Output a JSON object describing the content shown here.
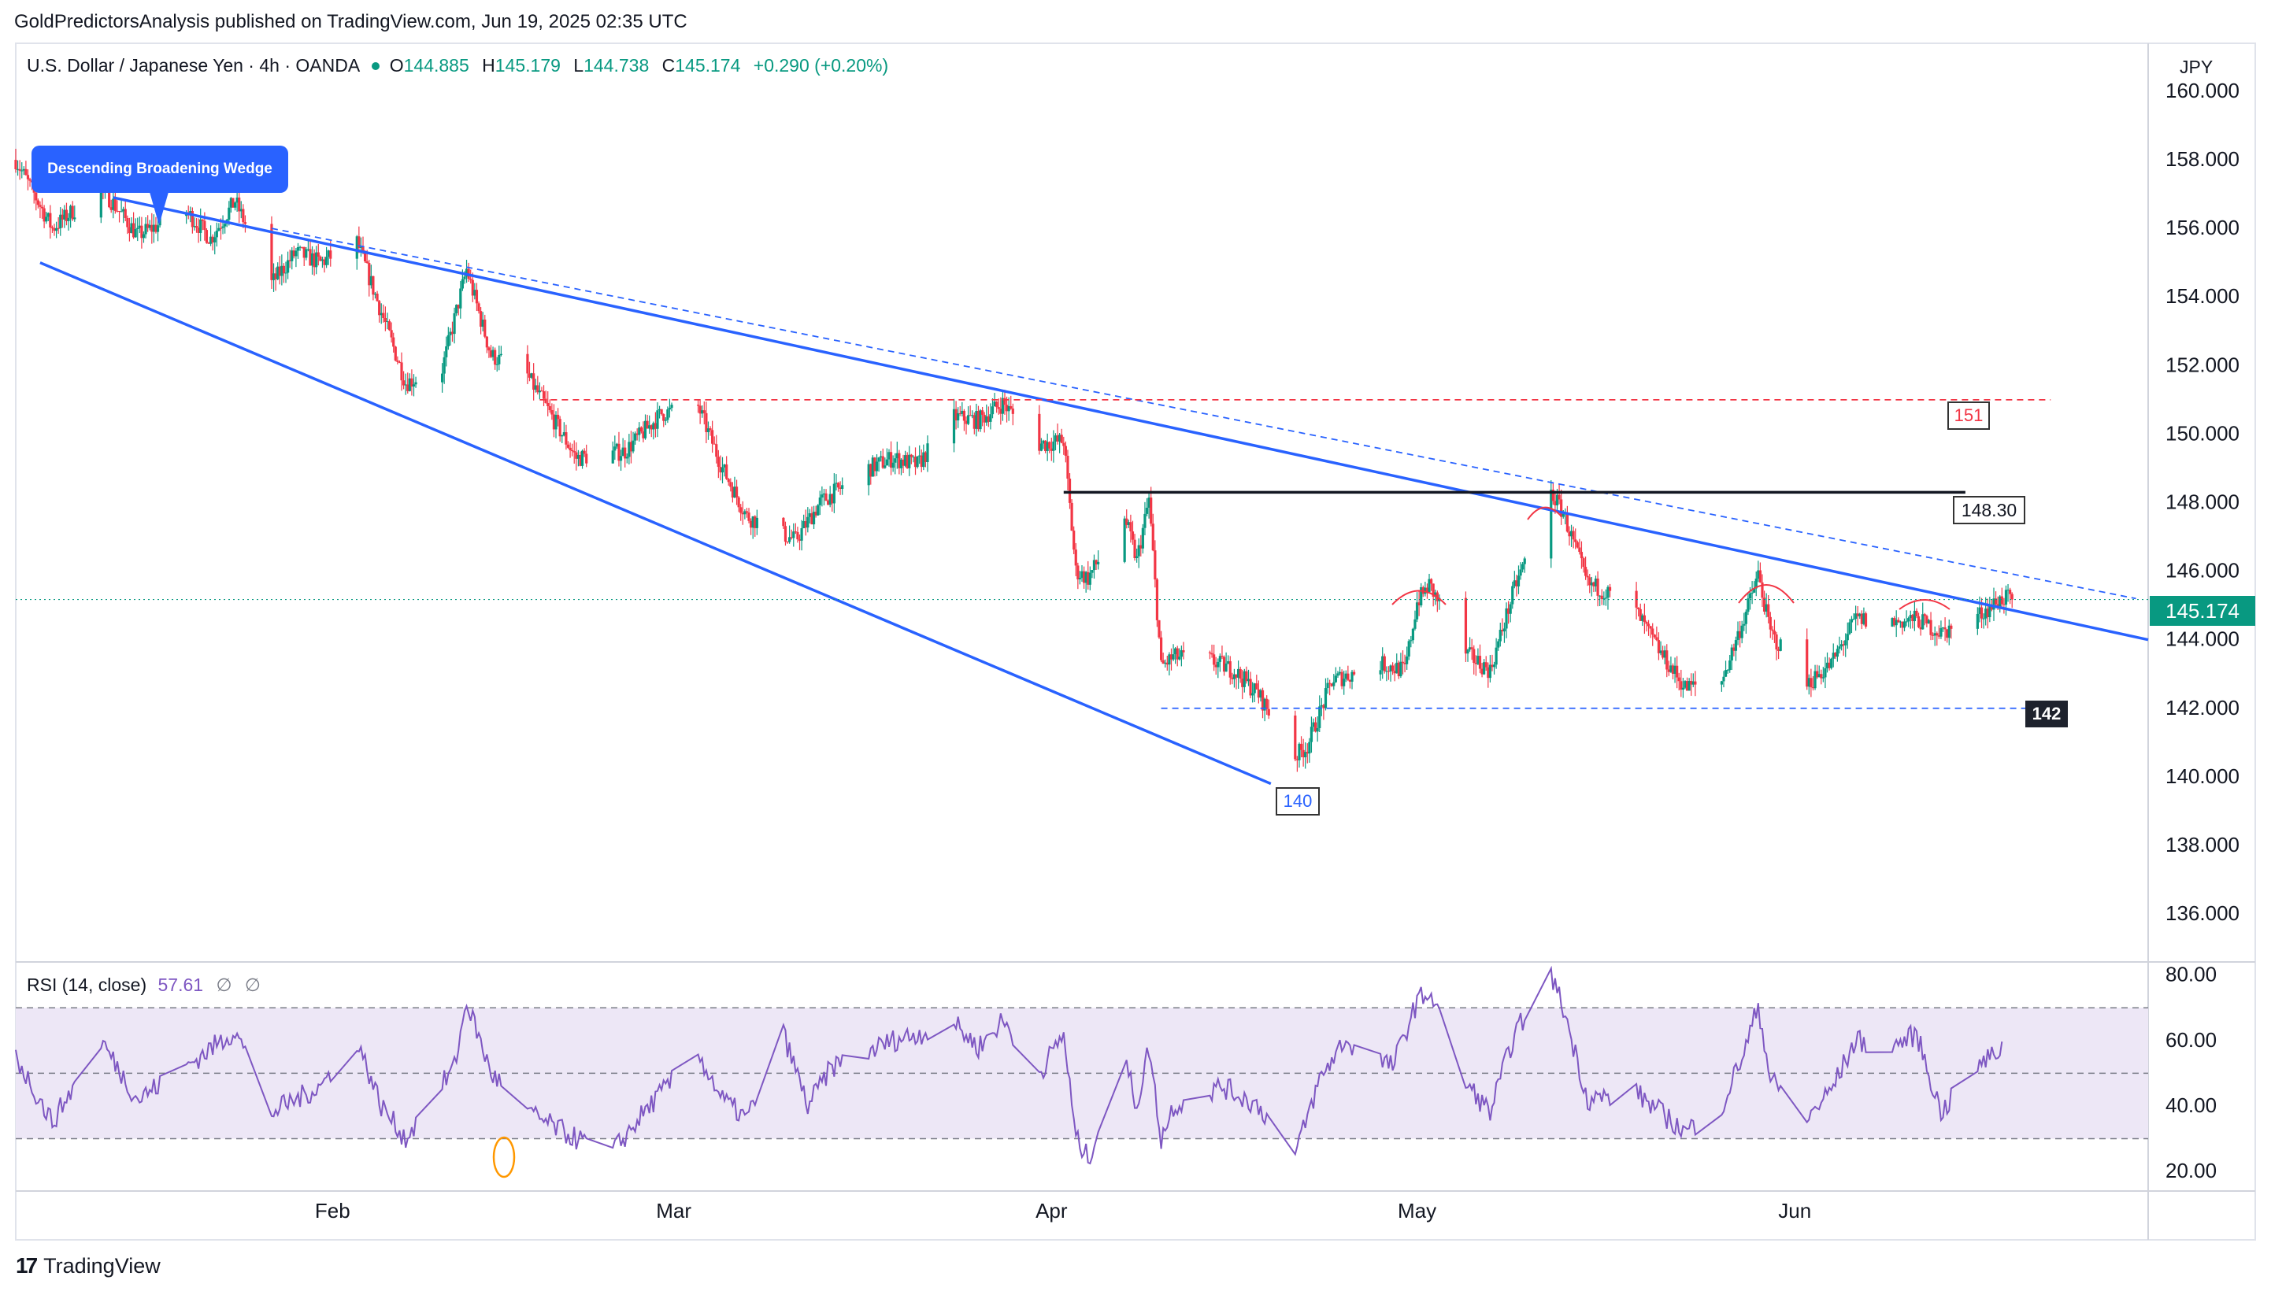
{
  "header": {
    "published": "GoldPredictorsAnalysis published on TradingView.com, Jun 19, 2025 02:35 UTC"
  },
  "legend": {
    "symbol": "U.S. Dollar / Japanese Yen",
    "interval": "4h",
    "source": "OANDA",
    "open_label": "O",
    "open": "144.885",
    "high_label": "H",
    "high": "145.179",
    "low_label": "L",
    "low": "144.738",
    "close_label": "C",
    "close": "145.174",
    "change": "+0.290 (+0.20%)"
  },
  "price_axis": {
    "currency": "JPY",
    "last_price": "145.174"
  },
  "annotations": {
    "pattern_label": "Descending Broadening Wedge",
    "level_151": "151",
    "level_148": "148.30",
    "level_142": "142",
    "level_140": "140"
  },
  "rsi": {
    "label": "RSI (14, close)",
    "value": "57.61",
    "extra1": "∅",
    "extra2": "∅",
    "ticks": [
      "80.00",
      "60.00",
      "40.00",
      "20.00"
    ]
  },
  "footer": {
    "brand": "TradingView"
  },
  "colors": {
    "up": "#089981",
    "down": "#f23645",
    "trend": "#2962ff",
    "level151": "#f23645",
    "rsi": "#7e57c2",
    "rsi_band": "#ede7f6",
    "lastprice": "#089981"
  },
  "chart_data": {
    "type": "candlestick",
    "instrument": "USDJPY",
    "ylim": [
      134.6,
      161.4
    ],
    "y_ticks": [
      "160.000",
      "158.000",
      "156.000",
      "154.000",
      "152.000",
      "150.000",
      "148.000",
      "146.000",
      "144.000",
      "142.000",
      "140.000",
      "138.000",
      "136.000"
    ],
    "x_ticks": [
      "Feb",
      "Mar",
      "Apr",
      "May",
      "Jun"
    ],
    "x_range": [
      "2025-01-06",
      "2025-06-30"
    ],
    "price_anchors": [
      [
        "2025-01-06",
        158.0
      ],
      [
        "2025-01-09",
        156.0
      ],
      [
        "2025-01-13",
        157.2
      ],
      [
        "2025-01-16",
        155.8
      ],
      [
        "2025-01-20",
        156.5
      ],
      [
        "2025-01-22",
        155.7
      ],
      [
        "2025-01-24",
        156.8
      ],
      [
        "2025-01-27",
        154.4
      ],
      [
        "2025-01-29",
        155.3
      ],
      [
        "2025-01-31",
        155.0
      ],
      [
        "2025-02-03",
        155.6
      ],
      [
        "2025-02-07",
        151.5
      ],
      [
        "2025-02-10",
        151.9
      ],
      [
        "2025-02-12",
        154.8
      ],
      [
        "2025-02-14",
        152.3
      ],
      [
        "2025-02-17",
        151.7
      ],
      [
        "2025-02-21",
        149.3
      ],
      [
        "2025-02-25",
        149.5
      ],
      [
        "2025-02-28",
        150.6
      ],
      [
        "2025-03-03",
        150.8
      ],
      [
        "2025-03-05",
        149.0
      ],
      [
        "2025-03-07",
        147.6
      ],
      [
        "2025-03-11",
        146.9
      ],
      [
        "2025-03-13",
        148.0
      ],
      [
        "2025-03-17",
        149.0
      ],
      [
        "2025-03-19",
        149.3
      ],
      [
        "2025-03-21",
        149.1
      ],
      [
        "2025-03-24",
        150.5
      ],
      [
        "2025-03-26",
        150.4
      ],
      [
        "2025-03-28",
        150.9
      ],
      [
        "2025-03-31",
        149.7
      ],
      [
        "2025-04-02",
        149.8
      ],
      [
        "2025-04-03",
        146.0
      ],
      [
        "2025-04-04",
        145.8
      ],
      [
        "2025-04-07",
        147.6
      ],
      [
        "2025-04-08",
        146.3
      ],
      [
        "2025-04-09",
        148.1
      ],
      [
        "2025-04-10",
        143.2
      ],
      [
        "2025-04-11",
        143.5
      ],
      [
        "2025-04-14",
        143.4
      ],
      [
        "2025-04-16",
        143.1
      ],
      [
        "2025-04-18",
        142.4
      ],
      [
        "2025-04-21",
        140.6
      ],
      [
        "2025-04-22",
        140.9
      ],
      [
        "2025-04-24",
        142.8
      ],
      [
        "2025-04-28",
        143.3
      ],
      [
        "2025-04-30",
        143.1
      ],
      [
        "2025-05-01",
        145.1
      ],
      [
        "2025-05-02",
        145.6
      ],
      [
        "2025-05-05",
        143.6
      ],
      [
        "2025-05-07",
        143.1
      ],
      [
        "2025-05-09",
        145.5
      ],
      [
        "2025-05-12",
        148.3
      ],
      [
        "2025-05-13",
        147.7
      ],
      [
        "2025-05-15",
        145.6
      ],
      [
        "2025-05-16",
        145.5
      ],
      [
        "2025-05-19",
        144.8
      ],
      [
        "2025-05-21",
        143.6
      ],
      [
        "2025-05-23",
        142.6
      ],
      [
        "2025-05-26",
        142.8
      ],
      [
        "2025-05-28",
        144.8
      ],
      [
        "2025-05-29",
        145.9
      ],
      [
        "2025-05-30",
        144.2
      ],
      [
        "2025-06-02",
        142.7
      ],
      [
        "2025-06-04",
        143.3
      ],
      [
        "2025-06-06",
        144.6
      ],
      [
        "2025-06-09",
        144.5
      ],
      [
        "2025-06-11",
        144.6
      ],
      [
        "2025-06-13",
        144.2
      ],
      [
        "2025-06-16",
        144.7
      ],
      [
        "2025-06-18",
        145.2
      ]
    ],
    "rsi_ylim": [
      14,
      84
    ],
    "rsi_band": [
      30,
      70
    ],
    "rsi_anchors": [
      [
        "2025-01-06",
        55
      ],
      [
        "2025-01-09",
        35
      ],
      [
        "2025-01-13",
        60
      ],
      [
        "2025-01-16",
        42
      ],
      [
        "2025-01-20",
        52
      ],
      [
        "2025-01-24",
        63
      ],
      [
        "2025-01-27",
        38
      ],
      [
        "2025-01-31",
        46
      ],
      [
        "2025-02-03",
        60
      ],
      [
        "2025-02-05",
        40
      ],
      [
        "2025-02-07",
        30
      ],
      [
        "2025-02-11",
        52
      ],
      [
        "2025-02-12",
        72
      ],
      [
        "2025-02-14",
        50
      ],
      [
        "2025-02-17",
        38
      ],
      [
        "2025-02-21",
        30
      ],
      [
        "2025-02-24",
        26
      ],
      [
        "2025-02-27",
        40
      ],
      [
        "2025-03-03",
        56
      ],
      [
        "2025-03-05",
        42
      ],
      [
        "2025-03-07",
        36
      ],
      [
        "2025-03-10",
        62
      ],
      [
        "2025-03-12",
        40
      ],
      [
        "2025-03-14",
        52
      ],
      [
        "2025-03-19",
        60
      ],
      [
        "2025-03-24",
        65
      ],
      [
        "2025-03-26",
        58
      ],
      [
        "2025-03-28",
        66
      ],
      [
        "2025-03-31",
        50
      ],
      [
        "2025-04-02",
        62
      ],
      [
        "2025-04-03",
        30
      ],
      [
        "2025-04-04",
        24
      ],
      [
        "2025-04-07",
        54
      ],
      [
        "2025-04-08",
        40
      ],
      [
        "2025-04-09",
        58
      ],
      [
        "2025-04-10",
        30
      ],
      [
        "2025-04-11",
        40
      ],
      [
        "2025-04-15",
        46
      ],
      [
        "2025-04-18",
        40
      ],
      [
        "2025-04-21",
        25
      ],
      [
        "2025-04-23",
        48
      ],
      [
        "2025-04-25",
        60
      ],
      [
        "2025-04-29",
        52
      ],
      [
        "2025-05-01",
        72
      ],
      [
        "2025-05-02",
        75
      ],
      [
        "2025-05-05",
        47
      ],
      [
        "2025-05-07",
        38
      ],
      [
        "2025-05-09",
        62
      ],
      [
        "2025-05-12",
        80
      ],
      [
        "2025-05-13",
        70
      ],
      [
        "2025-05-15",
        42
      ],
      [
        "2025-05-19",
        44
      ],
      [
        "2025-05-21",
        38
      ],
      [
        "2025-05-23",
        32
      ],
      [
        "2025-05-26",
        40
      ],
      [
        "2025-05-28",
        58
      ],
      [
        "2025-05-29",
        71
      ],
      [
        "2025-05-30",
        48
      ],
      [
        "2025-06-02",
        36
      ],
      [
        "2025-06-04",
        45
      ],
      [
        "2025-06-06",
        60
      ],
      [
        "2025-06-09",
        58
      ],
      [
        "2025-06-11",
        62
      ],
      [
        "2025-06-13",
        38
      ],
      [
        "2025-06-16",
        52
      ],
      [
        "2025-06-18",
        57.61
      ]
    ],
    "trendlines": [
      {
        "name": "wedge-upper",
        "from": [
          "2025-01-14",
          156.9
        ],
        "to": [
          "2025-06-30",
          144.0
        ]
      },
      {
        "name": "wedge-lower",
        "from": [
          "2025-01-08",
          155.0
        ],
        "to": [
          "2025-04-19",
          139.8
        ]
      },
      {
        "name": "upper-dashed",
        "from": [
          "2025-01-27",
          156.0
        ],
        "to": [
          "2025-06-29",
          145.2
        ]
      }
    ],
    "levels": [
      {
        "value": 151,
        "from": "2025-02-18",
        "to": "2025-06-22"
      },
      {
        "value": 148.3,
        "from": "2025-04-02",
        "to": "2025-06-15"
      },
      {
        "value": 142,
        "from": "2025-04-10",
        "to": "2025-06-22"
      }
    ],
    "last_close": 145.174
  }
}
